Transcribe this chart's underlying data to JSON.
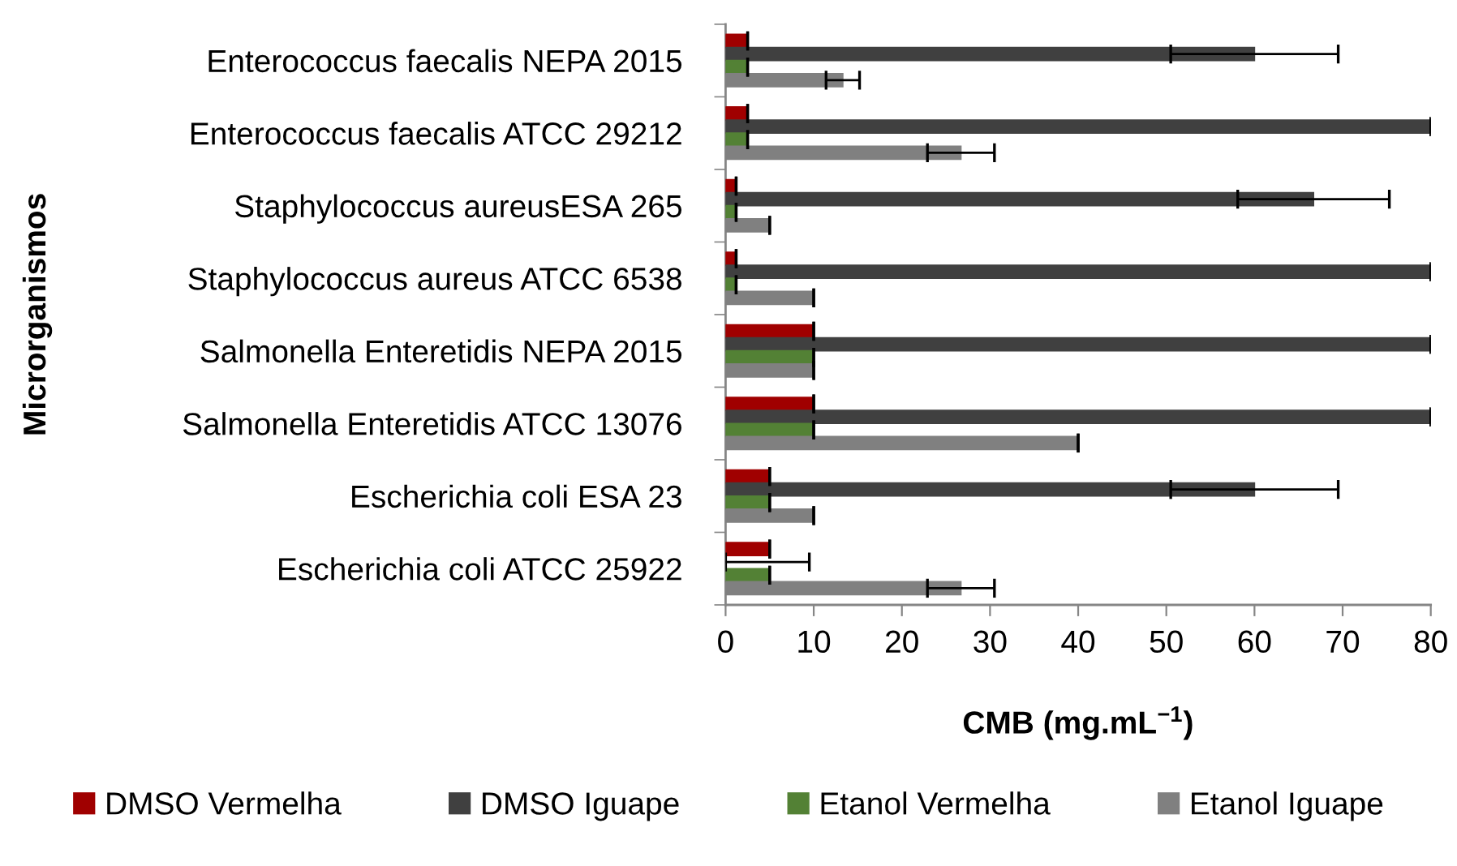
{
  "chart_data": {
    "type": "bar",
    "orientation": "horizontal",
    "ylabel": "Microrganismos",
    "xlabel": "CMB (mg.mL$^{−1}$)",
    "categories": [
      "Enterococcus faecalis NEPA 2015",
      "Enterococcus faecalis ATCC 29212",
      "Staphylococcus aureusESA 265",
      "Staphylococcus aureus ATCC 6538",
      "Salmonella Enteretidis NEPA 2015",
      "Salmonella Enteretidis ATCC 13076",
      "Escherichia coli ESA 23",
      "Escherichia coli ATCC 25922"
    ],
    "series": [
      {
        "name": "DMSO Vermelha",
        "color": "#a00000",
        "values": [
          2.5,
          2.5,
          1.2,
          1.2,
          10,
          10,
          5,
          5
        ],
        "errors": [
          0,
          0,
          0,
          0,
          0,
          0,
          0,
          0
        ]
      },
      {
        "name": "DMSO Iguape",
        "color": "#404040",
        "values": [
          60,
          80,
          66.7,
          80,
          80,
          80,
          60,
          0
        ],
        "errors": [
          9.5,
          0,
          8.6,
          0,
          0,
          0,
          9.5,
          [
            0,
            9.5
          ]
        ]
      },
      {
        "name": "Etanol Vermelha",
        "color": "#538135",
        "values": [
          2.5,
          2.5,
          1.2,
          1.2,
          10,
          10,
          5,
          5
        ],
        "errors": [
          0,
          0,
          0,
          0,
          0,
          0,
          0,
          0
        ]
      },
      {
        "name": "Etanol Iguape",
        "color": "#808080",
        "values": [
          13.3,
          26.7,
          5,
          10,
          10,
          40,
          10,
          26.7
        ],
        "errors": [
          1.9,
          3.8,
          0,
          0,
          0,
          0,
          0,
          3.8
        ]
      }
    ],
    "xlim": [
      0,
      80
    ],
    "xticks": [
      0,
      10,
      20,
      30,
      40,
      50,
      60,
      70,
      80
    ],
    "legend": "bottom",
    "grid": false
  }
}
